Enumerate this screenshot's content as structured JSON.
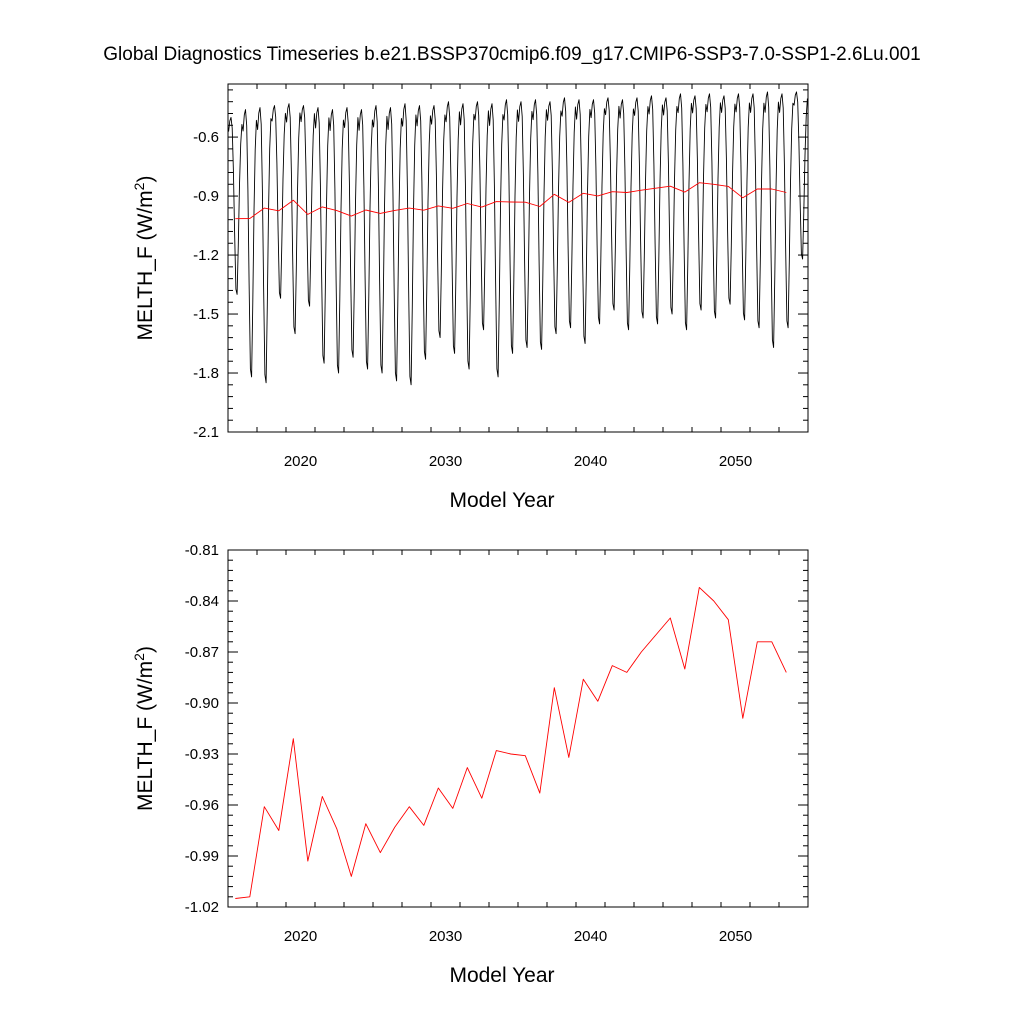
{
  "title": "Global Diagnostics Timeseries b.e21.BSSP370cmip6.f09_g17.CMIP6-SSP3-7.0-SSP1-2.6Lu.001",
  "chart_data": [
    {
      "type": "line",
      "xlabel": "Model Year",
      "ylabel_base": "MELTH_F (W/m",
      "ylabel_sup": "2",
      "ylabel_tail": ")",
      "xlim": [
        2015,
        2055
      ],
      "ylim": [
        -2.1,
        -0.33
      ],
      "xticks": [
        2020,
        2030,
        2040,
        2050
      ],
      "yticks": [
        -2.1,
        -1.8,
        -1.5,
        -1.2,
        -0.9,
        -0.6
      ],
      "ytick_labels": [
        "-2.1",
        "-1.8",
        "-1.5",
        "-1.2",
        "-0.9",
        "-0.6"
      ],
      "series": [
        {
          "color": "#000000",
          "resolution": "monthly",
          "start_year": 2015,
          "annual_maxima": [
            -0.5,
            -0.46,
            -0.45,
            -0.44,
            -0.43,
            -0.44,
            -0.45,
            -0.46,
            -0.45,
            -0.46,
            -0.44,
            -0.45,
            -0.43,
            -0.44,
            -0.44,
            -0.42,
            -0.43,
            -0.42,
            -0.43,
            -0.41,
            -0.42,
            -0.41,
            -0.42,
            -0.4,
            -0.41,
            -0.41,
            -0.4,
            -0.41,
            -0.4,
            -0.39,
            -0.4,
            -0.38,
            -0.39,
            -0.38,
            -0.39,
            -0.38,
            -0.38,
            -0.37,
            -0.38,
            -0.37
          ],
          "annual_minima": [
            -1.4,
            -1.82,
            -1.85,
            -1.42,
            -1.6,
            -1.46,
            -1.75,
            -1.8,
            -1.72,
            -1.78,
            -1.8,
            -1.84,
            -1.86,
            -1.73,
            -1.62,
            -1.7,
            -1.78,
            -1.58,
            -1.82,
            -1.7,
            -1.67,
            -1.68,
            -1.6,
            -1.57,
            -1.65,
            -1.55,
            -1.48,
            -1.58,
            -1.52,
            -1.55,
            -1.5,
            -1.58,
            -1.48,
            -1.52,
            -1.45,
            -1.53,
            -1.57,
            -1.67,
            -1.57,
            -1.22
          ]
        },
        {
          "color": "#ff0000",
          "resolution": "annual",
          "x": [
            2015.5,
            2016.5,
            2017.5,
            2018.5,
            2019.5,
            2020.5,
            2021.5,
            2022.5,
            2023.5,
            2024.5,
            2025.5,
            2026.5,
            2027.5,
            2028.5,
            2029.5,
            2030.5,
            2031.5,
            2032.5,
            2033.5,
            2034.5,
            2035.5,
            2036.5,
            2037.5,
            2038.5,
            2039.5,
            2040.5,
            2041.5,
            2042.5,
            2043.5,
            2044.5,
            2045.5,
            2046.5,
            2047.5,
            2048.5,
            2049.5,
            2050.5,
            2051.5,
            2052.5,
            2053.5
          ],
          "y": [
            -1.015,
            -1.014,
            -0.961,
            -0.975,
            -0.921,
            -0.993,
            -0.955,
            -0.974,
            -1.002,
            -0.971,
            -0.988,
            -0.973,
            -0.961,
            -0.972,
            -0.95,
            -0.962,
            -0.938,
            -0.956,
            -0.928,
            -0.93,
            -0.931,
            -0.953,
            -0.891,
            -0.932,
            -0.886,
            -0.899,
            -0.878,
            -0.882,
            -0.87,
            -0.86,
            -0.85,
            -0.88,
            -0.832,
            -0.84,
            -0.851,
            -0.909,
            -0.864,
            -0.864,
            -0.882
          ]
        }
      ]
    },
    {
      "type": "line",
      "xlabel": "Model Year",
      "ylabel_base": "MELTH_F (W/m",
      "ylabel_sup": "2",
      "ylabel_tail": ")",
      "xlim": [
        2015,
        2055
      ],
      "ylim": [
        -1.02,
        -0.81
      ],
      "xticks": [
        2020,
        2030,
        2040,
        2050
      ],
      "yticks": [
        -1.02,
        -0.99,
        -0.96,
        -0.93,
        -0.9,
        -0.87,
        -0.84,
        -0.81
      ],
      "ytick_labels": [
        "-1.02",
        "-0.99",
        "-0.96",
        "-0.93",
        "-0.90",
        "-0.87",
        "-0.84",
        "-0.81"
      ],
      "series": [
        {
          "color": "#ff0000",
          "x": [
            2015.5,
            2016.5,
            2017.5,
            2018.5,
            2019.5,
            2020.5,
            2021.5,
            2022.5,
            2023.5,
            2024.5,
            2025.5,
            2026.5,
            2027.5,
            2028.5,
            2029.5,
            2030.5,
            2031.5,
            2032.5,
            2033.5,
            2034.5,
            2035.5,
            2036.5,
            2037.5,
            2038.5,
            2039.5,
            2040.5,
            2041.5,
            2042.5,
            2043.5,
            2044.5,
            2045.5,
            2046.5,
            2047.5,
            2048.5,
            2049.5,
            2050.5,
            2051.5,
            2052.5,
            2053.5
          ],
          "y": [
            -1.015,
            -1.014,
            -0.961,
            -0.975,
            -0.921,
            -0.993,
            -0.955,
            -0.974,
            -1.002,
            -0.971,
            -0.988,
            -0.973,
            -0.961,
            -0.972,
            -0.95,
            -0.962,
            -0.938,
            -0.956,
            -0.928,
            -0.93,
            -0.931,
            -0.953,
            -0.891,
            -0.932,
            -0.886,
            -0.899,
            -0.878,
            -0.882,
            -0.87,
            -0.86,
            -0.85,
            -0.88,
            -0.832,
            -0.84,
            -0.851,
            -0.909,
            -0.864,
            -0.864,
            -0.882
          ]
        }
      ]
    }
  ]
}
